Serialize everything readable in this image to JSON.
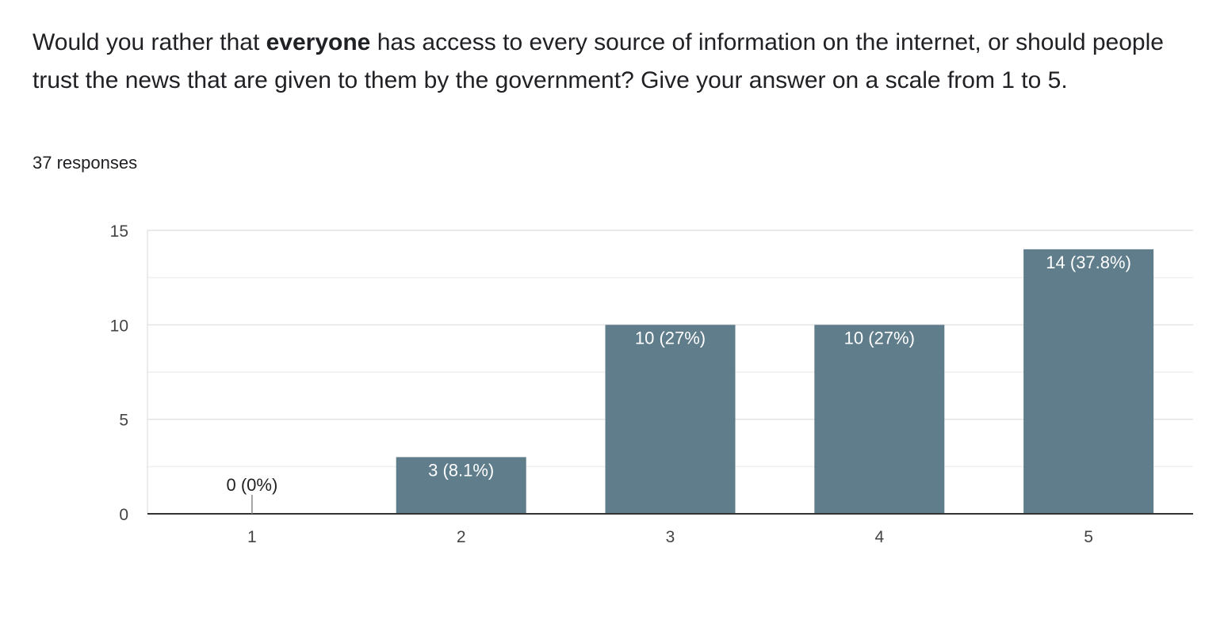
{
  "question": {
    "before": "Would you rather that ",
    "emphasis": "everyone",
    "after": " has access to every source of information on the internet, or should people trust the news that are given to them by the government? Give your answer on a scale from 1 to 5."
  },
  "responses_label": "37 responses",
  "colors": {
    "bar": "#607d8b",
    "grid": "#e8e8e8",
    "axis": "#333333",
    "label_inside": "#ffffff",
    "label_outside": "#222222"
  },
  "chart_data": {
    "type": "bar",
    "categories": [
      "1",
      "2",
      "3",
      "4",
      "5"
    ],
    "values": [
      0,
      3,
      10,
      10,
      14
    ],
    "data_labels": [
      "0 (0%)",
      "3 (8.1%)",
      "10 (27%)",
      "10 (27%)",
      "14 (37.8%)"
    ],
    "ylim": [
      0,
      15
    ],
    "yticks": [
      0,
      5,
      10,
      15
    ],
    "grid": true
  }
}
